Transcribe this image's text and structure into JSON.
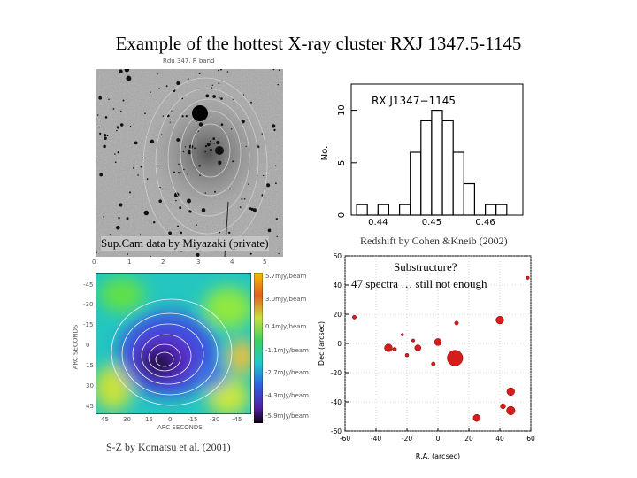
{
  "slide": {
    "title": "Example of the hottest X-ray cluster RXJ 1347.5-1145"
  },
  "optical_panel": {
    "band_label": "Rdu 347. R band",
    "caption": "Sup.Cam data by Miyazaki (private)"
  },
  "histogram_panel": {
    "caption": "Redshift by Cohen &Kneib (2002)"
  },
  "sz_panel": {
    "caption": "S-Z by Komatsu et al. (2001)",
    "top_ticks": [
      "0",
      "1",
      "2",
      "3",
      "4",
      "5"
    ],
    "left_ticks": [
      "-45",
      "-30",
      "-15",
      "0",
      "15",
      "30",
      "45"
    ],
    "bottom_ticks": [
      "45",
      "30",
      "15",
      "0",
      "-15",
      "-30",
      "-45"
    ],
    "ylabel": "ARC SECONDS",
    "xlabel": "ARC SECONDS",
    "colorbar_labels": [
      "5.7mJy/beam",
      "3.0mJy/beam",
      "0.4mJy/beam",
      "-1.1mJy/beam",
      "-2.7mJy/beam",
      "-4.3mJy/beam",
      "-5.9mJy/beam"
    ]
  },
  "substructure_panel": {
    "caption_line1": "Substructure?",
    "caption_line2": "47 spectra … still not enough"
  },
  "chart_data": [
    {
      "type": "bar",
      "title": "RX J1347−1145",
      "xlabel": "",
      "ylabel": "No.",
      "x_ticks": [
        "0.44",
        "0.45",
        "0.46"
      ],
      "y_ticks": [
        "0",
        "5",
        "10"
      ],
      "xlim": [
        0.435,
        0.467
      ],
      "ylim": [
        0,
        12.5
      ],
      "bin_width": 0.002,
      "bins": [
        {
          "x": 0.436,
          "value": 1
        },
        {
          "x": 0.438,
          "value": 0
        },
        {
          "x": 0.44,
          "value": 1
        },
        {
          "x": 0.442,
          "value": 0
        },
        {
          "x": 0.444,
          "value": 1
        },
        {
          "x": 0.446,
          "value": 6
        },
        {
          "x": 0.448,
          "value": 9
        },
        {
          "x": 0.45,
          "value": 10
        },
        {
          "x": 0.452,
          "value": 9
        },
        {
          "x": 0.454,
          "value": 6
        },
        {
          "x": 0.456,
          "value": 3
        },
        {
          "x": 0.458,
          "value": 0
        },
        {
          "x": 0.46,
          "value": 1
        },
        {
          "x": 0.462,
          "value": 1
        }
      ]
    },
    {
      "type": "scatter",
      "xlabel": "R.A. (arcsec)",
      "ylabel": "Dec (arcsec)",
      "xlim": [
        -60,
        60
      ],
      "ylim": [
        -60,
        60
      ],
      "x_ticks": [
        "-60",
        "-40",
        "-20",
        "0",
        "20",
        "40",
        "60"
      ],
      "y_ticks": [
        "60",
        "40",
        "20",
        "0",
        "-20",
        "-40",
        "-60"
      ],
      "points": [
        {
          "x": -54,
          "y": 18,
          "size": 1
        },
        {
          "x": -23,
          "y": 6,
          "size": 0.7
        },
        {
          "x": -16,
          "y": 2,
          "size": 0.8
        },
        {
          "x": -32,
          "y": -3,
          "size": 2
        },
        {
          "x": -28,
          "y": -4,
          "size": 1
        },
        {
          "x": -20,
          "y": -8,
          "size": 0.9
        },
        {
          "x": -13,
          "y": -3,
          "size": 1.6
        },
        {
          "x": 0,
          "y": 1,
          "size": 1.8
        },
        {
          "x": -3,
          "y": -14,
          "size": 1
        },
        {
          "x": 11,
          "y": -10,
          "size": 4
        },
        {
          "x": 12,
          "y": 14,
          "size": 1
        },
        {
          "x": 40,
          "y": 16,
          "size": 2
        },
        {
          "x": 58,
          "y": 45,
          "size": 0.8
        },
        {
          "x": 47,
          "y": -33,
          "size": 2
        },
        {
          "x": 42,
          "y": -43,
          "size": 1.3
        },
        {
          "x": 47,
          "y": -46,
          "size": 2.2
        },
        {
          "x": 25,
          "y": -51,
          "size": 1.8
        }
      ]
    }
  ]
}
